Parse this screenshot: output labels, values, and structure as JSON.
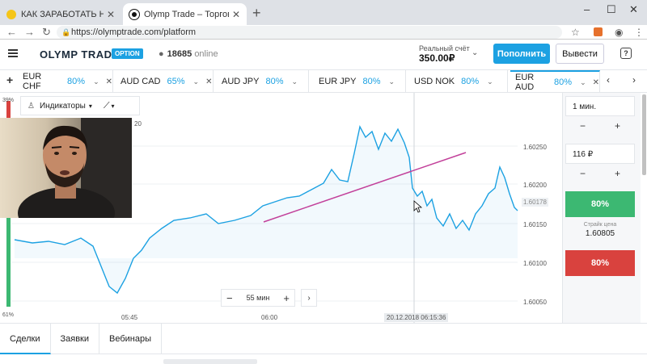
{
  "browser": {
    "tabs": [
      {
        "title": "КАК ЗАРАБОТАТЬ НА ОЛИМП Т",
        "favicon_color": "#f5c518",
        "active": false
      },
      {
        "title": "Olymp Trade – Торговая платфо",
        "favicon_color": "#111111",
        "active": true
      }
    ],
    "new_tab": "+",
    "window_controls": [
      "–",
      "☐",
      "✕"
    ],
    "url": "https://olymptrade.com/platform"
  },
  "header": {
    "logo": "OLYMP TRADE",
    "badge": "OPTION",
    "online_count": "18685",
    "online_label": "online",
    "account_label": "Реальный счёт",
    "account_balance": "350.00₽",
    "deposit_button": "Пополнить",
    "withdraw_button": "Вывести",
    "help": "?"
  },
  "assets": {
    "add": "+",
    "tabs": [
      {
        "name": "EUR CHF",
        "pct": "80%",
        "active": false
      },
      {
        "name": "AUD CAD",
        "pct": "65%",
        "active": false
      },
      {
        "name": "AUD JPY",
        "pct": "80%",
        "active": false
      },
      {
        "name": "EUR JPY",
        "pct": "80%",
        "active": false
      },
      {
        "name": "USD NOK",
        "pct": "80%",
        "active": false
      },
      {
        "name": "EUR AUD",
        "pct": "80%",
        "active": true
      }
    ]
  },
  "chart": {
    "indicators_label": "Индикаторы",
    "y_ticks": [
      "1.60250",
      "1.60200",
      "1.60150",
      "1.60100",
      "1.60050"
    ],
    "current_price": "1.60178",
    "x_ticks": [
      "05:45",
      "06:00"
    ],
    "crosshair_time": "20.12.2018 06:15:36",
    "partial_tick": "20",
    "sentiment_up": "39%",
    "sentiment_down": "61%",
    "zoom_label": "55 мин",
    "colors": {
      "line": "#1ca1e2",
      "trend": "#c2409a",
      "up": "#3cb872",
      "down": "#d9423e"
    }
  },
  "panel": {
    "duration": "1 мин.",
    "amount": "116 ₽",
    "minus": "−",
    "plus": "+",
    "up_label": "80%",
    "down_label": "80%",
    "strike_label": "Страйк цена",
    "strike_value": "1.60805"
  },
  "bottom": {
    "tabs": [
      "Сделки",
      "Заявки",
      "Вебинары"
    ]
  }
}
